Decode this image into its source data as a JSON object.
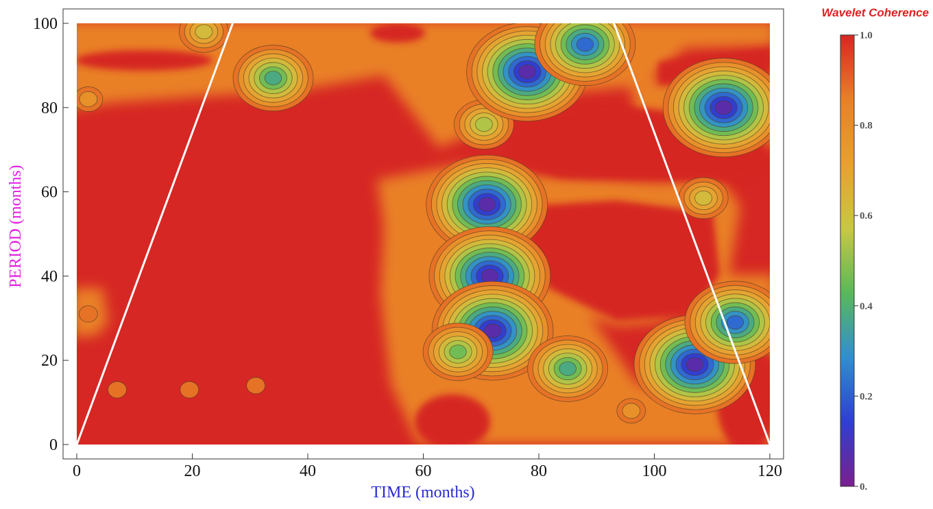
{
  "chart_data": {
    "type": "heatmap",
    "title": "",
    "xlabel": "TIME (months)",
    "ylabel": "PERIOD (months)",
    "xlim": [
      0,
      120
    ],
    "ylim": [
      0,
      100
    ],
    "x_ticks": [
      "0",
      "20",
      "40",
      "60",
      "80",
      "100",
      "120"
    ],
    "y_ticks": [
      "0",
      "20",
      "40",
      "60",
      "80",
      "100"
    ],
    "colorbar": {
      "title": "Wavelet Coherence",
      "ticks": [
        "0.",
        "0.2",
        "0.4",
        "0.6",
        "0.8",
        "1.0"
      ],
      "range": [
        0,
        1
      ],
      "stops": [
        "#7b1f8f",
        "#2f3fd0",
        "#2f8fd0",
        "#5ab85a",
        "#c8c842",
        "#e8a030",
        "#e98026",
        "#d62724"
      ]
    },
    "background_value": 0.97,
    "cone_of_influence": {
      "left": [
        [
          0,
          0
        ],
        [
          27,
          100
        ]
      ],
      "right": [
        [
          93,
          100
        ],
        [
          120,
          0
        ]
      ]
    },
    "features": [
      {
        "x": 7,
        "y": 13,
        "value": 0.88
      },
      {
        "x": 19.5,
        "y": 13,
        "value": 0.88
      },
      {
        "x": 31,
        "y": 14,
        "value": 0.88
      },
      {
        "x": 2,
        "y": 31,
        "value": 0.88
      },
      {
        "x": 2,
        "y": 82,
        "value": 0.75
      },
      {
        "x": 22,
        "y": 98,
        "value": 0.55
      },
      {
        "x": 34,
        "y": 87,
        "value": 0.35
      },
      {
        "x": 70.5,
        "y": 76,
        "value": 0.5
      },
      {
        "x": 78,
        "y": 88.5,
        "value": 0.05
      },
      {
        "x": 88,
        "y": 95,
        "value": 0.15
      },
      {
        "x": 112,
        "y": 80,
        "value": 0.05
      },
      {
        "x": 108.5,
        "y": 58.5,
        "value": 0.55
      },
      {
        "x": 71,
        "y": 57,
        "value": 0.05
      },
      {
        "x": 71.5,
        "y": 40,
        "value": 0.05
      },
      {
        "x": 72,
        "y": 27,
        "value": 0.05
      },
      {
        "x": 66,
        "y": 22,
        "value": 0.4
      },
      {
        "x": 85,
        "y": 18,
        "value": 0.35
      },
      {
        "x": 107,
        "y": 19,
        "value": 0.05
      },
      {
        "x": 114,
        "y": 29,
        "value": 0.15
      },
      {
        "x": 96,
        "y": 8,
        "value": 0.75
      }
    ]
  }
}
